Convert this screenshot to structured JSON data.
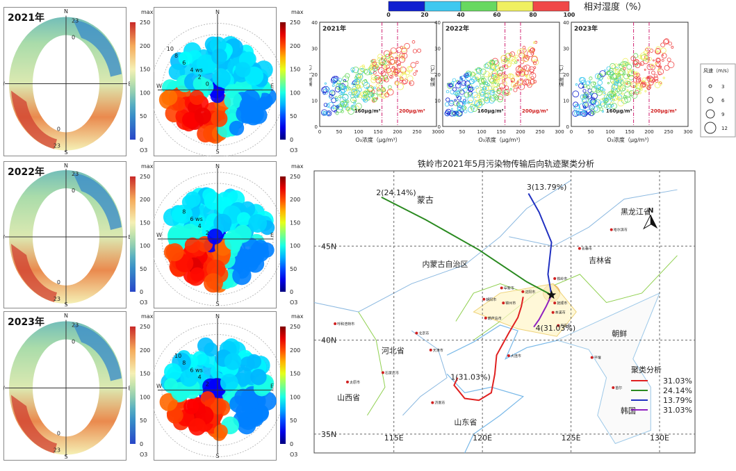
{
  "row_years": [
    "2021年",
    "2022年",
    "2023年"
  ],
  "colorbar": {
    "max_label": "max",
    "ticks": [
      "250",
      "200",
      "150",
      "100",
      "50",
      "0"
    ],
    "unit": "O3"
  },
  "compass": {
    "n": "N",
    "s": "S",
    "e": "E",
    "w": "W"
  },
  "rose_hours": {
    "top": "23",
    "inner_top": "0",
    "inner_bottom": "0",
    "bottom": "23"
  },
  "polar_rings": [
    [
      "10",
      "8",
      "6",
      "4 ws",
      "2",
      "0"
    ],
    [
      "8",
      "6 ws",
      "4",
      "2"
    ],
    [
      "10",
      "8",
      "6 ws",
      "4",
      "2"
    ]
  ],
  "colors": {
    "blue": "#1020d0",
    "cyan": "#3ec8f0",
    "green": "#68d860",
    "yellow": "#f0f060",
    "red": "#f04848"
  },
  "rh_legend": {
    "ticks": [
      "0",
      "20",
      "40",
      "60",
      "80",
      "100"
    ],
    "title": "相对湿度（%）"
  },
  "chart_data": [
    {
      "type": "scatter",
      "panels": [
        {
          "title": "2021年"
        },
        {
          "title": "2022年"
        },
        {
          "title": "2023年"
        }
      ],
      "xlabel": "O₃浓度（μg/m³）",
      "ylabel": "温度（℃）",
      "xlim": [
        0,
        300
      ],
      "ylim": [
        0,
        40
      ],
      "xticks": [
        "0",
        "50",
        "100",
        "150",
        "200",
        "250",
        "300"
      ],
      "yticks": [
        "0",
        "10",
        "20",
        "30",
        "40"
      ],
      "reference_lines": [
        {
          "x": 160,
          "label": "160μg/m³"
        },
        {
          "x": 200,
          "label": "200μg/m³"
        }
      ],
      "size_legend": {
        "title": "风速（m/s）",
        "values": [
          "3",
          "6",
          "9",
          "12"
        ]
      }
    },
    {
      "type": "line",
      "title": "铁岭市2021年5月污染物传输后向轨迹聚类分析",
      "lon_ticks": [
        "115E",
        "120E",
        "125E",
        "130E"
      ],
      "lat_ticks": [
        "45N",
        "40N",
        "35N"
      ],
      "legend_title": "聚类分析",
      "series": [
        {
          "name": "31.03%",
          "label": "1(31.03%)",
          "color": "#e02020",
          "points": [
            [
              122.3,
              42.3
            ],
            [
              122.2,
              41.8
            ],
            [
              122.0,
              41.2
            ],
            [
              121.5,
              40.4
            ],
            [
              120.8,
              39.2
            ],
            [
              120.7,
              38.2
            ],
            [
              120.5,
              37.2
            ],
            [
              119.8,
              36.8
            ],
            [
              119.0,
              36.9
            ],
            [
              118.4,
              37.6
            ],
            [
              118.6,
              38.0
            ]
          ]
        },
        {
          "name": "24.14%",
          "label": "2(24.14%)",
          "color": "#2a8a20",
          "points": [
            [
              123.9,
              42.4
            ],
            [
              122.5,
              43.1
            ],
            [
              119.8,
              44.8
            ],
            [
              116.8,
              46.4
            ],
            [
              114.3,
              47.6
            ]
          ]
        },
        {
          "name": "13.79%",
          "label": "3(13.79%)",
          "color": "#2030c0",
          "points": [
            [
              123.9,
              42.4
            ],
            [
              123.7,
              43.5
            ],
            [
              123.9,
              45.2
            ],
            [
              123.2,
              46.8
            ],
            [
              122.6,
              47.8
            ]
          ]
        },
        {
          "name": "31.03%",
          "label": "4(31.03%)",
          "color": "#9020c0",
          "points": [
            [
              123.9,
              42.4
            ],
            [
              123.6,
              41.8
            ],
            [
              123.2,
              41.1
            ],
            [
              122.9,
              40.7
            ]
          ]
        }
      ],
      "place_labels": [
        "蒙古",
        "内蒙古自治区",
        "黑龙江省",
        "吉林省",
        "哈尔滨市",
        "长春市",
        "铁岭市",
        "沈阳市",
        "阜新市",
        "朝阳市",
        "锦州市",
        "葫芦岛市",
        "抚顺市",
        "本溪市",
        "丹东市",
        "大连市",
        "呼和浩特市",
        "北京市",
        "天津市",
        "石家庄市",
        "太原市",
        "济南市",
        "河北省",
        "山西省",
        "山东省",
        "朝鲜",
        "韩国",
        "平壤",
        "首尔"
      ]
    }
  ]
}
